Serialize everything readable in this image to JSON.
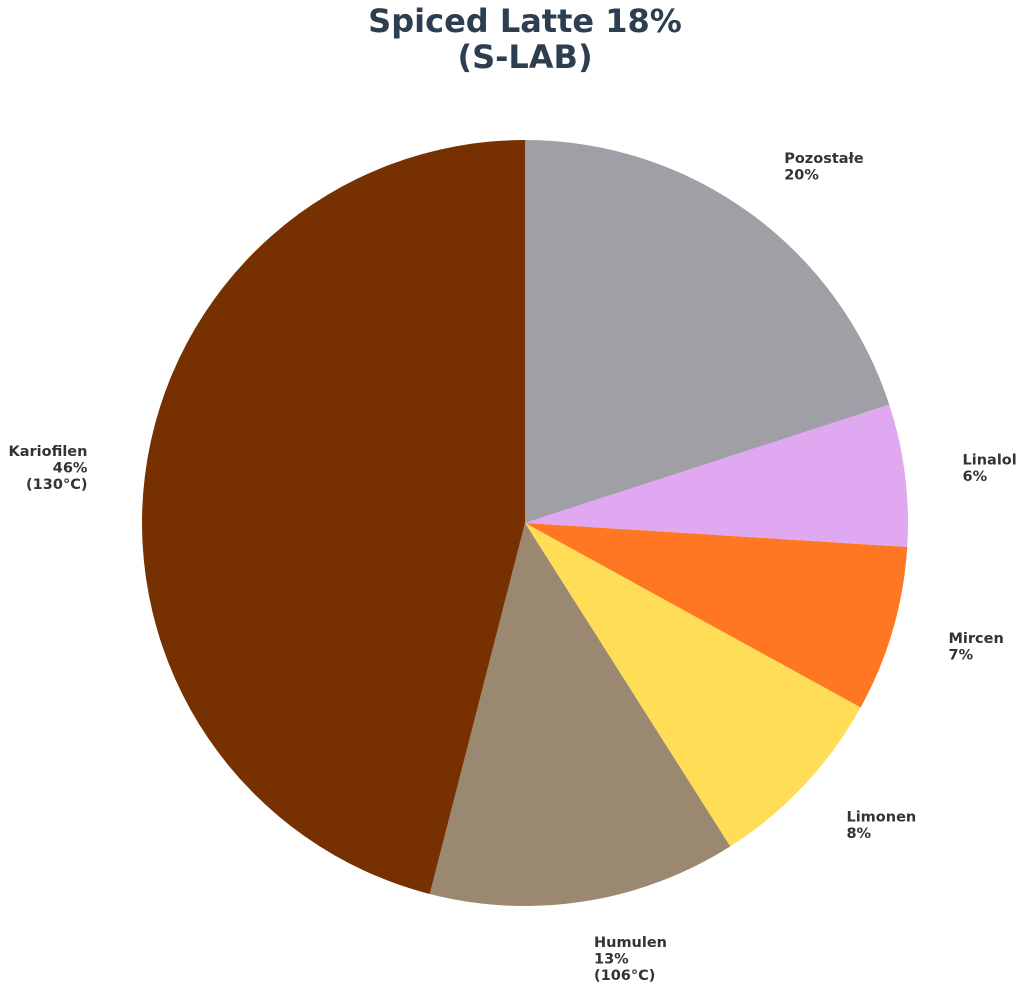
{
  "chart_data": {
    "type": "pie",
    "title": "Spiced Latte 18%",
    "subtitle": "(S-LAB)",
    "categories": [
      "Pozostałe",
      "Linalol",
      "Mircen",
      "Limonen",
      "Humulen",
      "Kariofilen"
    ],
    "values": [
      20,
      6,
      7,
      8,
      13,
      46
    ],
    "value_labels": [
      "20%",
      "6%",
      "7%",
      "8%",
      "13%",
      "46%"
    ],
    "boiling_points": [
      null,
      null,
      null,
      null,
      "(106°C)",
      "(130°C)"
    ],
    "colors": [
      "#a09fa5",
      "#e0a8f0",
      "#ff7722",
      "#ffdd57",
      "#9a8870",
      "#773000"
    ],
    "start_angle": 90,
    "direction": "clockwise"
  }
}
